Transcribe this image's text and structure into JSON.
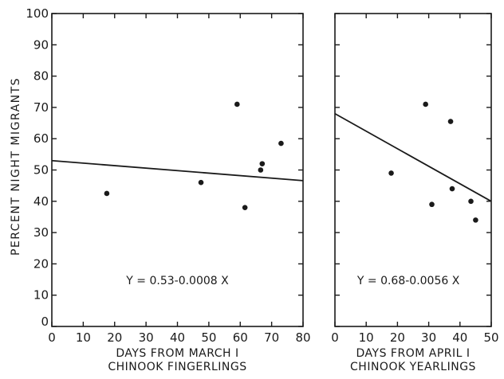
{
  "ylabel": "PERCENT NIGHT MIGRANTS",
  "chart_data": [
    {
      "type": "scatter",
      "name": "fingerlings",
      "xlabel_line1": "DAYS FROM MARCH I",
      "xlabel_line2": "CHINOOK FINGERLINGS",
      "equation": "Y = 0.53-0.0008 X",
      "xlim": [
        0,
        80
      ],
      "ylim": [
        0,
        100
      ],
      "xticks": [
        0,
        10,
        20,
        30,
        40,
        50,
        60,
        70,
        80
      ],
      "yticks": [
        0,
        10,
        20,
        30,
        40,
        50,
        60,
        70,
        80,
        90,
        100
      ],
      "points": [
        {
          "x": 17.5,
          "y": 42.5
        },
        {
          "x": 47.5,
          "y": 46
        },
        {
          "x": 59,
          "y": 71
        },
        {
          "x": 61.5,
          "y": 38
        },
        {
          "x": 66.5,
          "y": 50
        },
        {
          "x": 67,
          "y": 52
        },
        {
          "x": 73,
          "y": 58.5
        }
      ],
      "fit": {
        "intercept": 53,
        "slope": -0.08
      }
    },
    {
      "type": "scatter",
      "name": "yearlings",
      "xlabel_line1": "DAYS FROM APRIL I",
      "xlabel_line2": "CHINOOK YEARLINGS",
      "equation": "Y = 0.68-0.0056 X",
      "xlim": [
        0,
        50
      ],
      "ylim": [
        0,
        100
      ],
      "xticks": [
        0,
        10,
        20,
        30,
        40,
        50
      ],
      "yticks": [
        0,
        10,
        20,
        30,
        40,
        50,
        60,
        70,
        80,
        90,
        100
      ],
      "points": [
        {
          "x": 18,
          "y": 49
        },
        {
          "x": 29,
          "y": 71
        },
        {
          "x": 31,
          "y": 39
        },
        {
          "x": 37,
          "y": 65.5
        },
        {
          "x": 37.5,
          "y": 44
        },
        {
          "x": 43.5,
          "y": 40
        },
        {
          "x": 45,
          "y": 34
        }
      ],
      "fit": {
        "intercept": 68,
        "slope": -0.56
      }
    }
  ]
}
